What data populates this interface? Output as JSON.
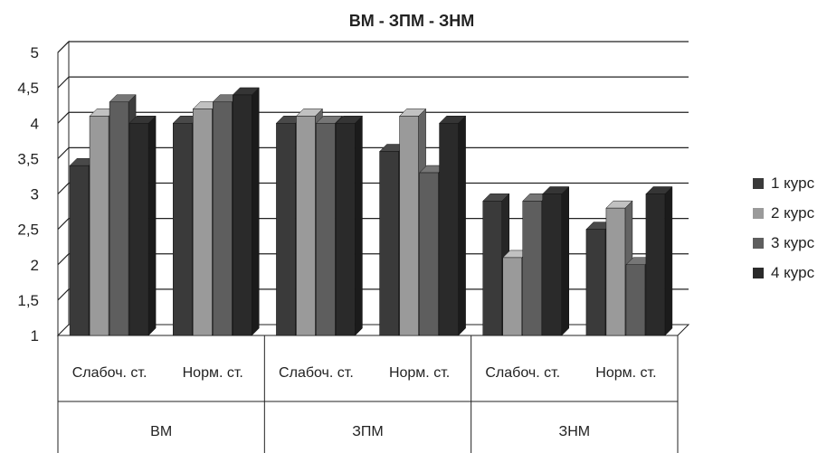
{
  "chart_data": {
    "type": "bar",
    "title": "ВМ - ЗПМ - ЗНМ",
    "ylim": [
      1,
      5
    ],
    "yticks": [
      "1",
      "1,5",
      "2",
      "2,5",
      "3",
      "3,5",
      "4",
      "4,5",
      "5"
    ],
    "ytick_values": [
      1,
      1.5,
      2,
      2.5,
      3,
      3.5,
      4,
      4.5,
      5
    ],
    "groups": [
      "ВМ",
      "ЗПМ",
      "ЗНМ"
    ],
    "categories": [
      "Слабоч. ст.",
      "Норм. ст.",
      "Слабоч. ст.",
      "Норм. ст.",
      "Слабоч. ст.",
      "Норм. ст."
    ],
    "series": [
      {
        "name": "1 курс",
        "color": "#3a3a3a",
        "values": [
          3.4,
          4.0,
          4.0,
          3.6,
          2.9,
          2.5
        ]
      },
      {
        "name": "2 курс",
        "color": "#9a9a9a",
        "values": [
          4.1,
          4.2,
          4.1,
          4.1,
          2.1,
          2.8
        ]
      },
      {
        "name": "3 курс",
        "color": "#5e5e5e",
        "values": [
          4.3,
          4.3,
          4.0,
          3.3,
          2.9,
          2.0
        ]
      },
      {
        "name": "4 курс",
        "color": "#2a2a2a",
        "values": [
          4.0,
          4.4,
          4.0,
          4.0,
          3.0,
          3.0
        ]
      }
    ],
    "grid": true,
    "legend_position": "right"
  }
}
